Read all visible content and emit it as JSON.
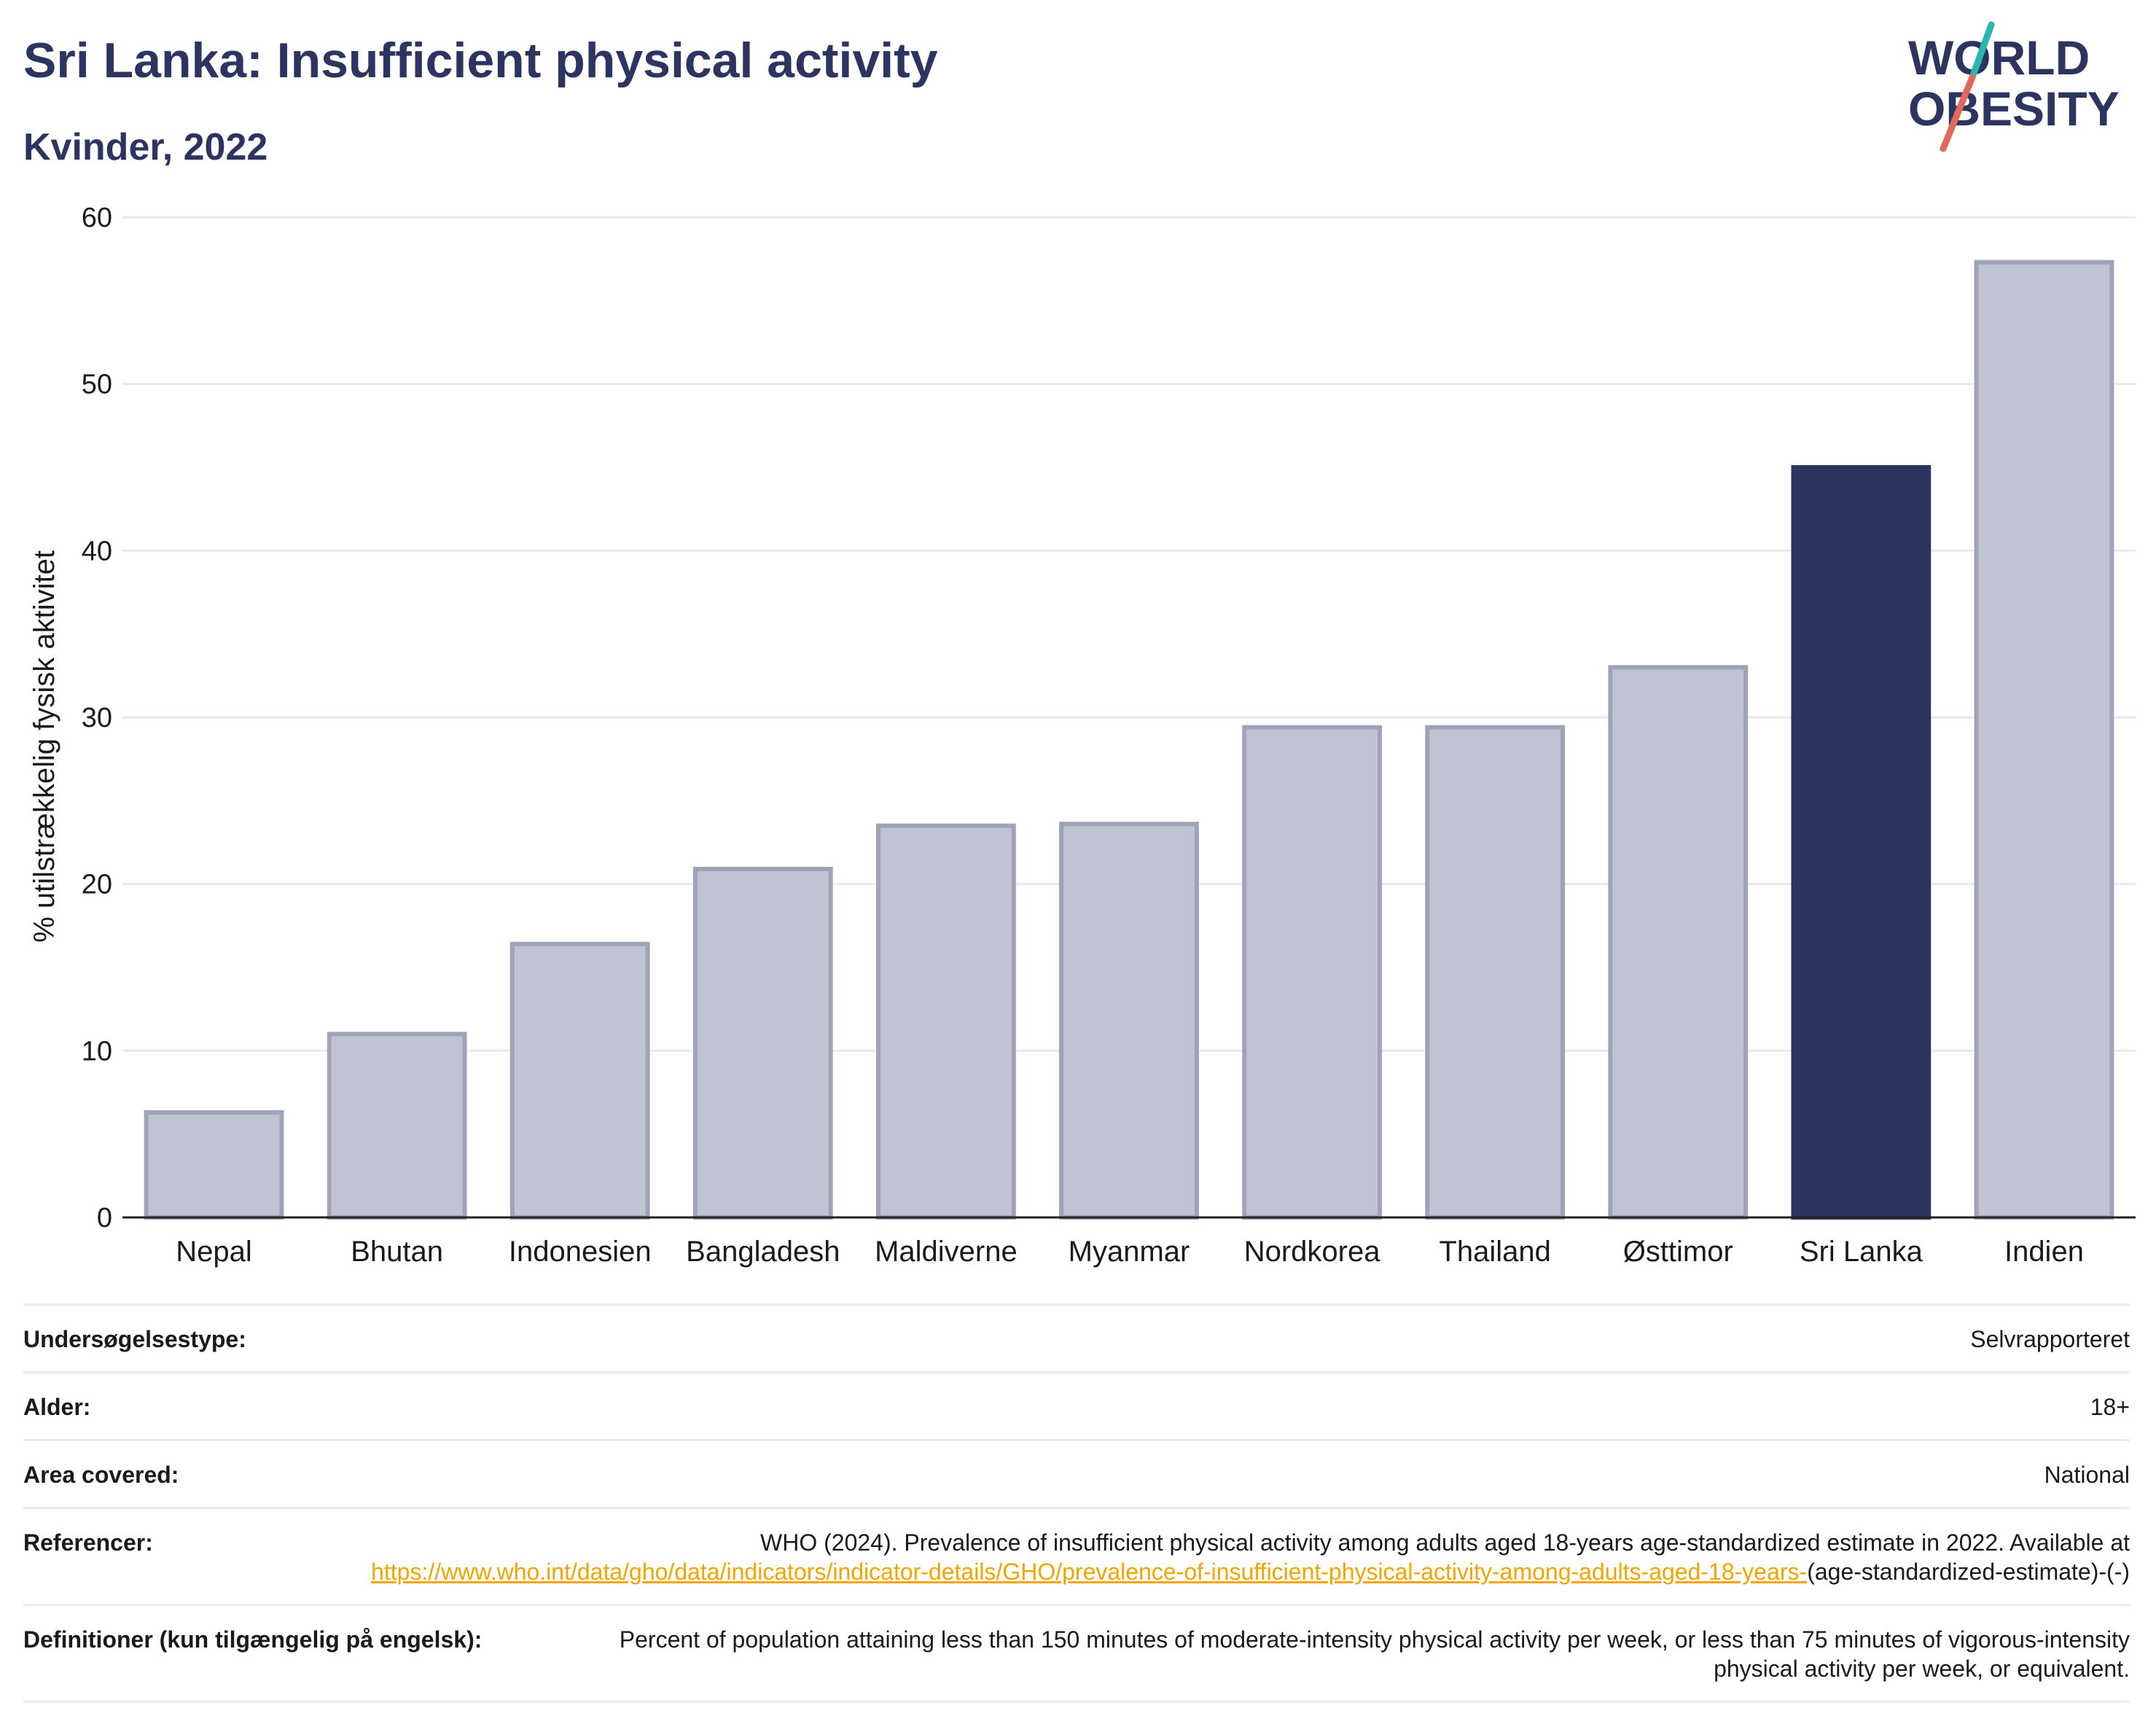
{
  "header": {
    "title": "Sri Lanka: Insufficient physical activity",
    "subtitle": "Kvinder, 2022"
  },
  "logo": {
    "line1": "WORLD",
    "line2": "OBESITY",
    "text_color": "#2b3560",
    "slash_colors": [
      "#2bb5b0",
      "#e06a5a"
    ]
  },
  "colors": {
    "highlight": "#2b3560",
    "other_fill": "#bfc3d1",
    "other_stroke": "#9ea3b8",
    "grid": "#e8eaf2",
    "link": "#f0a500"
  },
  "chart_data": {
    "type": "bar",
    "title": "Sri Lanka: Insufficient physical activity",
    "subtitle": "Kvinder, 2022",
    "ylabel": "% utilstrækkelig fysisk aktivitet",
    "xlabel": "",
    "ylim": [
      0,
      60
    ],
    "yticks": [
      0,
      10,
      20,
      30,
      40,
      50,
      60
    ],
    "grid": true,
    "categories": [
      "Nepal",
      "Bhutan",
      "Indonesien",
      "Bangladesh",
      "Maldiverne",
      "Myanmar",
      "Nordkorea",
      "Thailand",
      "Østtimor",
      "Sri Lanka",
      "Indien"
    ],
    "values": [
      6.3,
      11.0,
      16.4,
      20.9,
      23.5,
      23.6,
      29.4,
      29.4,
      33.0,
      45.0,
      57.3
    ],
    "highlight": "Sri Lanka"
  },
  "metadata": {
    "survey_type": {
      "label": "Undersøgelsestype:",
      "value": "Selvrapporteret"
    },
    "age": {
      "label": "Alder:",
      "value": "18+"
    },
    "area": {
      "label": "Area covered:",
      "value": "National"
    },
    "references": {
      "label": "Referencer:",
      "text": "WHO (2024). Prevalence of insufficient physical activity among adults aged 18-years age-standardized estimate in 2022. Available at",
      "link": "https://www.who.int/data/gho/data/indicators/indicator-details/GHO/prevalence-of-insufficient-physical-activity-among-adults-aged-18-years-",
      "suffix": "(age-standardized-estimate)-(-)"
    },
    "definitions": {
      "label": "Definitioner (kun tilgængelig på engelsk):",
      "value": "Percent of population attaining less than 150 minutes of moderate-intensity physical activity per week, or less than 75 minutes of vigorous-intensity physical activity per week, or equivalent."
    }
  }
}
